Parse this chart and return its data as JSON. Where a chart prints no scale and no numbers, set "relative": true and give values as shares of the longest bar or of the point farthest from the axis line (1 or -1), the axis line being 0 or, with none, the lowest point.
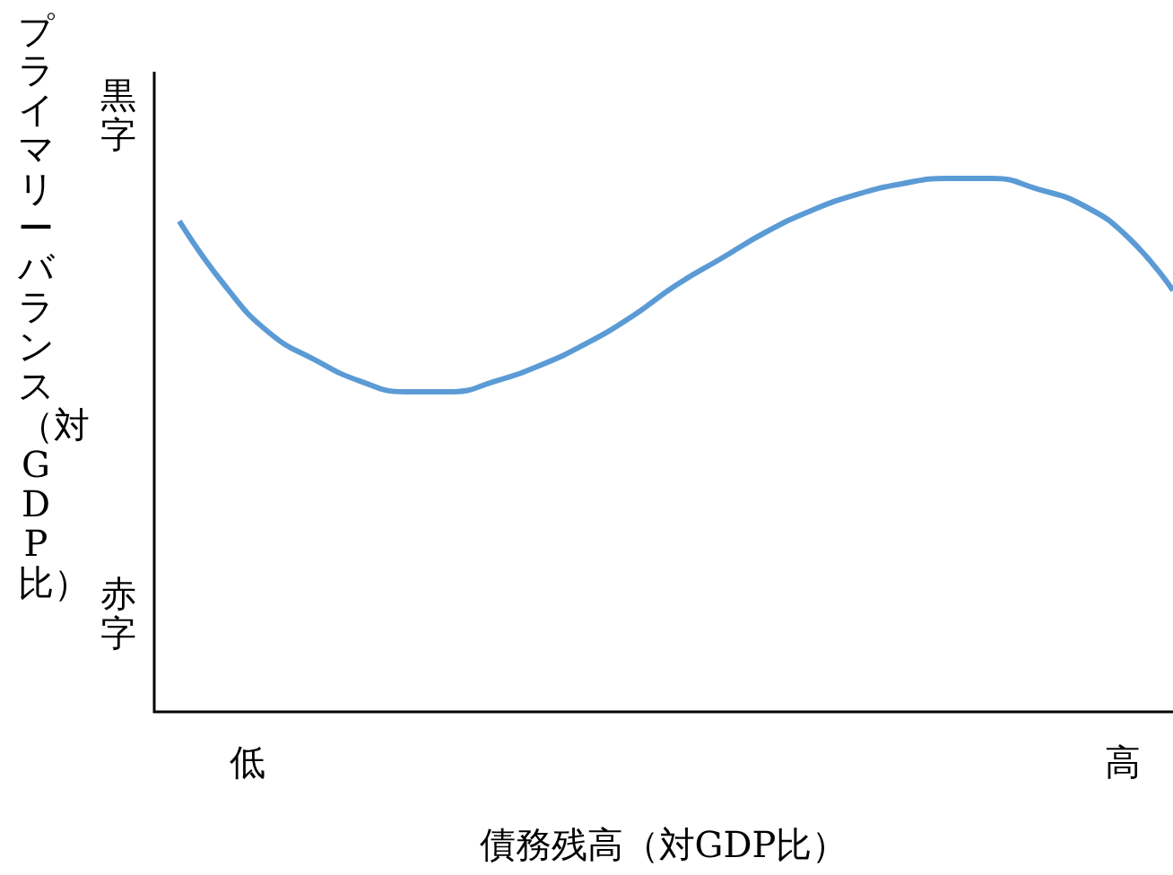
{
  "chart_data": {
    "type": "line",
    "relative": true,
    "xlabel": "債務残高（対GDP比）",
    "ylabel": "プライマリーバランス（対GDP比）",
    "annotations": [
      "黒字",
      "赤字",
      "低",
      "高"
    ],
    "categories": [
      null,
      null,
      null,
      null,
      null,
      null,
      null,
      null,
      null,
      null,
      null,
      null,
      null,
      null,
      null,
      null,
      null,
      null,
      null,
      null,
      null,
      null,
      null
    ],
    "series": [
      {
        "color": "#5b9bd5",
        "values": [
          0.92,
          0.8,
          0.71,
          0.66,
          0.62,
          0.6,
          0.6,
          0.62,
          0.65,
          0.69,
          0.74,
          0.8,
          0.85,
          0.9,
          0.94,
          0.97,
          0.99,
          1,
          1,
          0.98,
          0.95,
          0.89,
          0.79
        ]
      }
    ],
    "marker": "none",
    "line_style": "solid"
  }
}
